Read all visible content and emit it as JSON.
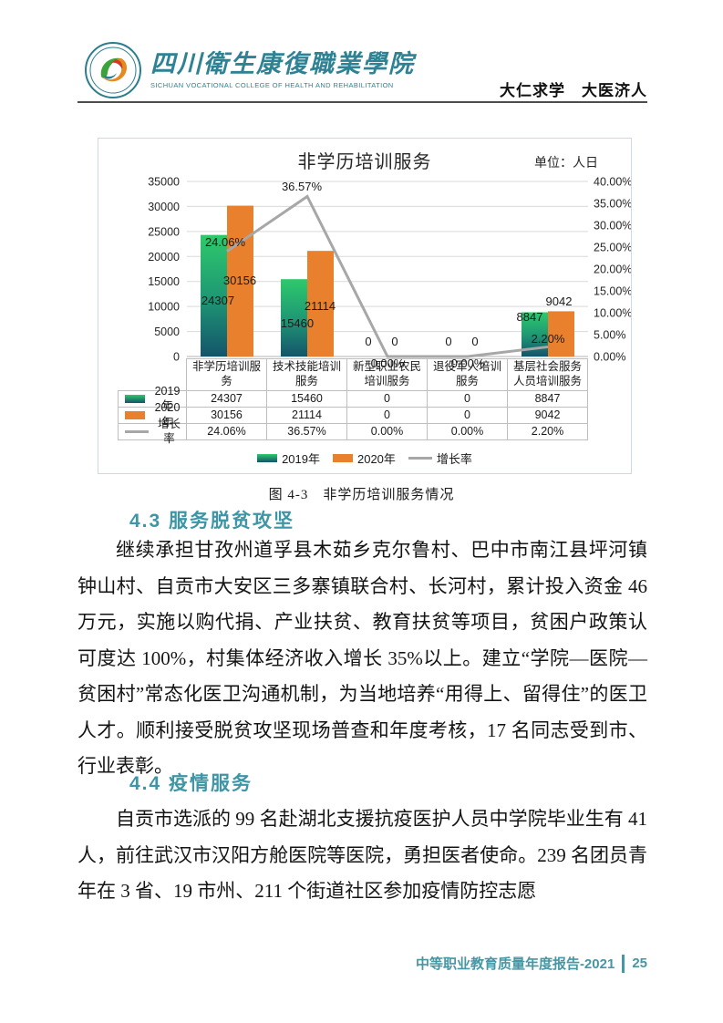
{
  "header": {
    "logo": {
      "college_name_zh": "四川衛生康復職業學院",
      "college_name_en": "SICHUAN VOCATIONAL COLLEGE OF HEALTH AND REHABILITATION"
    },
    "motto": "大仁求学　大医济人"
  },
  "chart_data": {
    "type": "bar",
    "subtype": "grouped bars with growth-rate line (combo chart with data table)",
    "title": "非学历培训服务",
    "unit_label": "单位：人日",
    "categories": [
      "非学历培训服务",
      "技术技能培训服务",
      "新型职业农民培训服务",
      "退役军人培训服务",
      "基层社会服务人员培训服务"
    ],
    "series": [
      {
        "name": "2019年",
        "type": "bar",
        "values": [
          24307,
          15460,
          0,
          0,
          8847
        ],
        "labels": [
          "24307",
          "15460",
          "0",
          "0",
          "8847"
        ]
      },
      {
        "name": "2020年",
        "type": "bar",
        "values": [
          30156,
          21114,
          0,
          0,
          9042
        ],
        "labels": [
          "30156",
          "21114",
          "0",
          "0",
          "9042"
        ]
      },
      {
        "name": "增长率",
        "type": "line",
        "values": [
          24.06,
          36.57,
          0.0,
          0.0,
          2.2
        ],
        "labels": [
          "24.06%",
          "36.57%",
          "0.00%",
          "0.00%",
          "2.20%"
        ]
      }
    ],
    "left_axis": {
      "min": 0,
      "max": 35000,
      "step": 5000,
      "tick_labels": [
        "0",
        "5000",
        "10000",
        "15000",
        "20000",
        "25000",
        "30000",
        "35000"
      ]
    },
    "right_axis": {
      "min": 0,
      "max": 40,
      "step": 5,
      "tick_labels": [
        "0.00%",
        "5.00%",
        "10.00%",
        "15.00%",
        "20.00%",
        "25.00%",
        "30.00%",
        "35.00%",
        "40.00%"
      ]
    },
    "legend": [
      "2019年",
      "2020年",
      "增长率"
    ],
    "legend_position": "bottom",
    "grid": "horizontal gridlines on",
    "colors": {
      "bar2019_top": "#2ec96b",
      "bar2019_mid": "#1f9a74",
      "bar2019_bottom": "#14546b",
      "bar2020": "#e8802e",
      "line": "#a7a7a7",
      "grid": "#d9d9d9",
      "axis_baseline": "#b3b3b3",
      "table_border": "#bfbfbf"
    }
  },
  "figure_caption": "图 4-3　非学历培训服务情况",
  "sections": [
    {
      "heading": "4.3 服务脱贫攻坚",
      "paragraphs": [
        "继续承担甘孜州道孚县木茹乡克尔鲁村、巴中市南江县坪河镇钟山村、自贡市大安区三多寨镇联合村、长河村，累计投入资金 46 万元，实施以购代捐、产业扶贫、教育扶贫等项目，贫困户政策认可度达 100%，村集体经济收入增长 35%以上。建立“学院—医院—贫困村”常态化医卫沟通机制，为当地培养“用得上、留得住”的医卫人才。顺利接受脱贫攻坚现场普查和年度考核，17 名同志受到市、行业表彰。"
      ]
    },
    {
      "heading": "4.4 疫情服务",
      "paragraphs": [
        "自贡市选派的 99 名赴湖北支援抗疫医护人员中学院毕业生有 41 人，前往武汉市汉阳方舱医院等医院，勇担医者使命。239 名团员青年在 3 省、19 市州、211 个街道社区参加疫情防控志愿"
      ]
    }
  ],
  "footer": {
    "report_title": "中等职业教育质量年度报告-2021",
    "page_number": "25"
  }
}
